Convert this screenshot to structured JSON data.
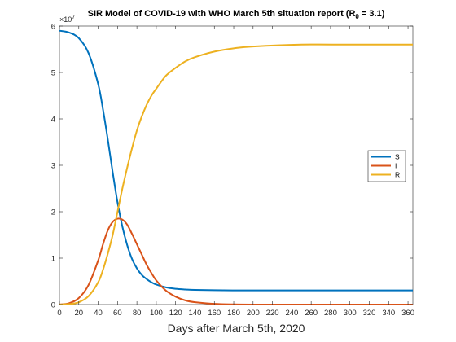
{
  "chart_data": {
    "type": "line",
    "title": "SIR Model of COVID-19 with WHO March 5th situation report (R",
    "title_subscript": "0",
    "title_suffix": " = 3.1)",
    "xlabel": "Days after March 5th, 2020",
    "ylabel": "",
    "y_exponent_base": "×10",
    "y_exponent": "7",
    "xlim": [
      0,
      365
    ],
    "ylim": [
      0,
      6
    ],
    "x_ticks": [
      0,
      20,
      40,
      60,
      80,
      100,
      120,
      140,
      160,
      180,
      200,
      220,
      240,
      260,
      280,
      300,
      320,
      340,
      360
    ],
    "y_ticks": [
      0,
      1,
      2,
      3,
      4,
      5,
      6
    ],
    "grid": false,
    "legend_position": "right",
    "x": [
      0,
      10,
      20,
      30,
      40,
      45,
      50,
      55,
      60,
      65,
      70,
      75,
      80,
      85,
      90,
      95,
      100,
      110,
      120,
      130,
      140,
      160,
      180,
      200,
      250,
      300,
      365
    ],
    "series": [
      {
        "name": "S",
        "color": "#0072BD",
        "values": [
          5.9,
          5.86,
          5.74,
          5.42,
          4.75,
          4.2,
          3.55,
          2.85,
          2.2,
          1.68,
          1.28,
          0.98,
          0.78,
          0.64,
          0.55,
          0.48,
          0.43,
          0.37,
          0.34,
          0.325,
          0.315,
          0.31,
          0.305,
          0.305,
          0.305,
          0.305,
          0.305
        ]
      },
      {
        "name": "I",
        "color": "#D95319",
        "values": [
          0.0,
          0.03,
          0.14,
          0.42,
          0.95,
          1.3,
          1.6,
          1.78,
          1.85,
          1.83,
          1.72,
          1.52,
          1.3,
          1.08,
          0.86,
          0.68,
          0.52,
          0.3,
          0.17,
          0.09,
          0.05,
          0.015,
          0.004,
          0.001,
          0.0,
          0.0,
          0.0
        ]
      },
      {
        "name": "R",
        "color": "#EDB120",
        "values": [
          0.0,
          0.01,
          0.05,
          0.18,
          0.48,
          0.75,
          1.1,
          1.5,
          2.0,
          2.5,
          2.95,
          3.37,
          3.75,
          4.05,
          4.3,
          4.5,
          4.65,
          4.93,
          5.1,
          5.24,
          5.33,
          5.45,
          5.52,
          5.56,
          5.6,
          5.6,
          5.6
        ]
      }
    ]
  }
}
